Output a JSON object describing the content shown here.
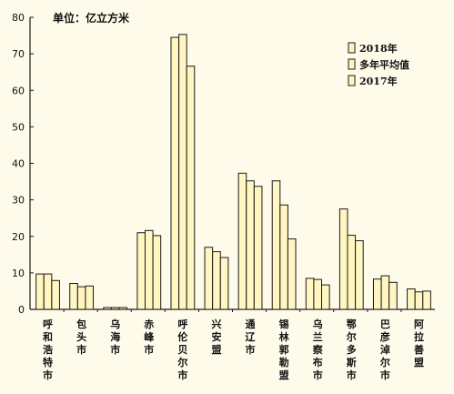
{
  "chart_data": {
    "type": "bar",
    "unit_label": "单位：亿立方米",
    "categories": [
      "呼和浩特市",
      "包头市",
      "乌海市",
      "赤峰市",
      "呼伦贝尔市",
      "兴安盟",
      "通辽市",
      "锡林郭勒盟",
      "乌兰察布市",
      "鄂尔多斯市",
      "巴彦淖尔市",
      "阿拉善盟"
    ],
    "series": [
      {
        "name": "2018年",
        "values": [
          9.7,
          7.1,
          0.5,
          21.0,
          74.5,
          17.0,
          37.3,
          35.2,
          8.5,
          27.5,
          8.3,
          5.6
        ]
      },
      {
        "name": "多年平均值",
        "values": [
          9.7,
          6.2,
          0.5,
          21.6,
          75.3,
          15.8,
          35.2,
          28.6,
          8.2,
          20.3,
          9.2,
          4.8
        ]
      },
      {
        "name": "2017年",
        "values": [
          7.9,
          6.4,
          0.5,
          20.2,
          66.6,
          14.2,
          33.7,
          19.3,
          6.7,
          18.8,
          7.4,
          5.0
        ]
      }
    ],
    "y_ticks": [
      "0",
      "10",
      "20",
      "30",
      "40",
      "50",
      "60",
      "70",
      "80"
    ],
    "ylim": [
      0,
      80
    ],
    "legend_position": "top-right",
    "grid": false,
    "colors": {
      "bar_fill": "#fff6c2",
      "bar_stroke": "#1a1a1a",
      "axis": "#1a1a1a",
      "background": "#fffbea"
    }
  }
}
